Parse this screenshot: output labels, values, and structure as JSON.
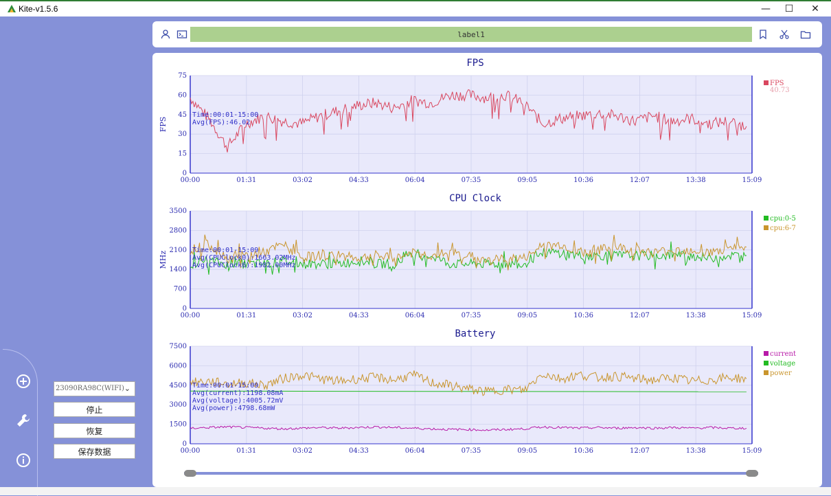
{
  "window": {
    "title": "Kite-v1.5.6",
    "min_icon": "minimize-icon",
    "max_icon": "maximize-icon",
    "close_icon": "close-icon"
  },
  "topbar": {
    "label": "label1",
    "icons": [
      "user-icon",
      "terminal-icon",
      "bookmark-icon",
      "scissors-icon",
      "folder-icon"
    ]
  },
  "sidebar": {
    "device_select": "23090RA98C(WIFI)",
    "buttons": {
      "stop": "停止",
      "resume": "恢复",
      "save": "保存数据"
    },
    "icons": [
      "add-circle-icon",
      "wrench-icon",
      "info-icon"
    ]
  },
  "chart_data": [
    {
      "type": "line",
      "title": "FPS",
      "ylabel": "FPS",
      "ylim": [
        0,
        75
      ],
      "yticks": [
        0,
        15,
        30,
        45,
        60,
        75
      ],
      "xticks": [
        "00:00",
        "01:31",
        "03:02",
        "04:33",
        "06:04",
        "07:35",
        "09:05",
        "10:36",
        "12:07",
        "13:38",
        "15:09"
      ],
      "annotations": [
        "Time:00:01-15:00",
        "Avg(FPS):46.02"
      ],
      "series": [
        {
          "name": "FPS",
          "color": "#d9475f",
          "legend_value": "40.73",
          "x": [
            "00:00",
            "00:30",
            "01:00",
            "01:30",
            "02:00",
            "02:30",
            "03:00",
            "03:30",
            "04:00",
            "04:30",
            "05:00",
            "05:30",
            "06:00",
            "06:30",
            "07:00",
            "07:30",
            "08:00",
            "08:30",
            "09:00",
            "09:30",
            "10:00",
            "10:30",
            "11:00",
            "11:30",
            "12:00",
            "12:30",
            "13:00",
            "13:30",
            "14:00",
            "14:30",
            "15:00"
          ],
          "values": [
            58,
            42,
            20,
            38,
            44,
            40,
            38,
            44,
            48,
            52,
            54,
            50,
            56,
            54,
            60,
            60,
            58,
            60,
            54,
            38,
            42,
            44,
            46,
            44,
            40,
            44,
            40,
            42,
            38,
            40,
            36
          ]
        }
      ]
    },
    {
      "type": "line",
      "title": "CPU Clock",
      "ylabel": "MHz",
      "ylim": [
        0,
        3500
      ],
      "yticks": [
        0,
        700,
        1400,
        2100,
        2800,
        3500
      ],
      "xticks": [
        "00:00",
        "01:31",
        "03:02",
        "04:33",
        "06:04",
        "07:35",
        "09:05",
        "10:36",
        "12:07",
        "13:38",
        "15:09"
      ],
      "annotations": [
        "Time:00:01-15:09",
        "Avg(CPUClock0):1663.02MHz",
        "Avg(CPUClock6):1982.00MHz"
      ],
      "series": [
        {
          "name": "cpu:0-5",
          "color": "#22bb22",
          "x": [
            "00:00",
            "00:30",
            "01:00",
            "01:30",
            "02:00",
            "02:30",
            "03:00",
            "03:30",
            "04:00",
            "04:30",
            "05:00",
            "05:30",
            "06:00",
            "06:30",
            "07:00",
            "07:30",
            "08:00",
            "08:30",
            "09:00",
            "09:30",
            "10:00",
            "10:30",
            "11:00",
            "11:30",
            "12:00",
            "12:30",
            "13:00",
            "13:30",
            "14:00",
            "14:30",
            "15:00"
          ],
          "values": [
            1600,
            1700,
            1600,
            1600,
            1600,
            1700,
            1600,
            1600,
            1600,
            1700,
            1600,
            1600,
            1900,
            1900,
            1600,
            1600,
            1600,
            1600,
            1600,
            2000,
            2000,
            1900,
            1900,
            1900,
            1900,
            1900,
            1900,
            1900,
            1800,
            1900,
            1900
          ]
        },
        {
          "name": "cpu:6-7",
          "color": "#c9952d",
          "x": [
            "00:00",
            "00:30",
            "01:00",
            "01:30",
            "02:00",
            "02:30",
            "03:00",
            "03:30",
            "04:00",
            "04:30",
            "05:00",
            "05:30",
            "06:00",
            "06:30",
            "07:00",
            "07:30",
            "08:00",
            "08:30",
            "09:00",
            "09:30",
            "10:00",
            "10:30",
            "11:00",
            "11:30",
            "12:00",
            "12:30",
            "13:00",
            "13:30",
            "14:00",
            "14:30",
            "15:00"
          ],
          "values": [
            2100,
            2300,
            1800,
            1900,
            2000,
            2300,
            1800,
            1900,
            1900,
            1800,
            1900,
            1800,
            2000,
            1900,
            2000,
            1900,
            1700,
            1800,
            1800,
            2200,
            2300,
            2000,
            2100,
            2200,
            2100,
            2000,
            2100,
            2100,
            2000,
            2100,
            2200
          ]
        }
      ]
    },
    {
      "type": "line",
      "title": "Battery",
      "ylabel": "",
      "ylim": [
        0,
        7500
      ],
      "yticks": [
        0,
        1500,
        3000,
        4500,
        6000,
        7500
      ],
      "xticks": [
        "00:00",
        "01:31",
        "03:02",
        "04:33",
        "06:04",
        "07:35",
        "09:05",
        "10:36",
        "12:07",
        "13:38",
        "15:09"
      ],
      "annotations": [
        "Time:00:01-15:09",
        "Avg(current):1198.08mA",
        "Avg(voltage):4005.72mV",
        "Avg(power):4798.68mW"
      ],
      "series": [
        {
          "name": "current",
          "color": "#b81aa8",
          "x": [
            "00:00",
            "00:30",
            "01:00",
            "01:30",
            "02:00",
            "02:30",
            "03:00",
            "03:30",
            "04:00",
            "04:30",
            "05:00",
            "05:30",
            "06:00",
            "06:30",
            "07:00",
            "07:30",
            "08:00",
            "08:30",
            "09:00",
            "09:30",
            "10:00",
            "10:30",
            "11:00",
            "11:30",
            "12:00",
            "12:30",
            "13:00",
            "13:30",
            "14:00",
            "14:30",
            "15:00"
          ],
          "values": [
            1200,
            1250,
            1300,
            1250,
            1200,
            1150,
            1200,
            1250,
            1200,
            1250,
            1300,
            1250,
            1200,
            1150,
            1100,
            1100,
            1050,
            1100,
            1150,
            1300,
            1250,
            1200,
            1250,
            1200,
            1250,
            1200,
            1250,
            1200,
            1250,
            1200,
            1200
          ]
        },
        {
          "name": "voltage",
          "color": "#22bb22",
          "x": [
            "00:00",
            "15:00"
          ],
          "values": [
            4050,
            4000
          ]
        },
        {
          "name": "power",
          "color": "#c9952d",
          "x": [
            "00:00",
            "00:30",
            "01:00",
            "01:30",
            "02:00",
            "02:30",
            "03:00",
            "03:30",
            "04:00",
            "04:30",
            "05:00",
            "05:30",
            "06:00",
            "06:30",
            "07:00",
            "07:30",
            "08:00",
            "08:30",
            "09:00",
            "09:30",
            "10:00",
            "10:30",
            "11:00",
            "11:30",
            "12:00",
            "12:30",
            "13:00",
            "13:30",
            "14:00",
            "14:30",
            "15:00"
          ],
          "values": [
            4700,
            4800,
            4600,
            4700,
            4500,
            5000,
            5300,
            5000,
            4800,
            5000,
            5100,
            4900,
            5300,
            4700,
            4500,
            4200,
            4000,
            4200,
            4100,
            5400,
            5000,
            5300,
            5100,
            5200,
            5000,
            4900,
            5100,
            4800,
            4900,
            5100,
            5000
          ]
        }
      ]
    }
  ],
  "slider": {
    "start": 0,
    "end": 1
  }
}
